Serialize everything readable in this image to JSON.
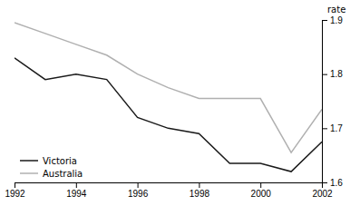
{
  "chart_data": {
    "type": "line",
    "x": [
      1992,
      1993,
      1994,
      1995,
      1996,
      1997,
      1998,
      1999,
      2000,
      2001,
      2002
    ],
    "series": [
      {
        "name": "Victoria",
        "color": "#1a1a1a",
        "values": [
          1.83,
          1.79,
          1.8,
          1.79,
          1.72,
          1.7,
          1.69,
          1.635,
          1.635,
          1.62,
          1.675
        ]
      },
      {
        "name": "Australia",
        "color": "#b0b0b0",
        "values": [
          1.895,
          1.875,
          1.855,
          1.835,
          1.8,
          1.775,
          1.755,
          1.755,
          1.755,
          1.655,
          1.735
        ]
      }
    ],
    "ylabel": "rate",
    "xlim": [
      1992,
      2002
    ],
    "xticks": [
      1992,
      1994,
      1996,
      1998,
      2000,
      2002
    ],
    "ylim": [
      1.6,
      1.9
    ],
    "yticks": [
      1.6,
      1.7,
      1.8,
      1.9
    ],
    "grid": false,
    "legend": "lower left"
  }
}
